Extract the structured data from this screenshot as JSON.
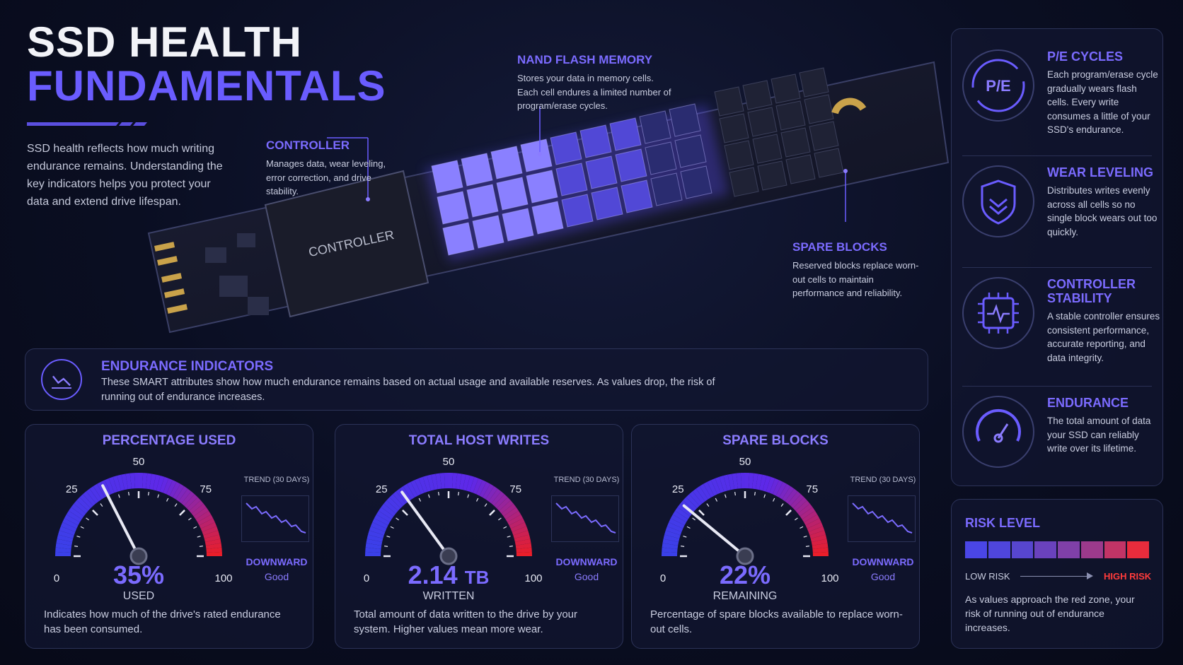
{
  "title": {
    "line1": "SSD HEALTH",
    "line2": "FUNDAMENTALS"
  },
  "intro": "SSD health reflects how much writing endurance remains. Understanding the key indicators helps you protect your data and extend drive lifespan.",
  "callouts": {
    "nand": {
      "heading": "NAND FLASH MEMORY",
      "text": "Stores your data in memory cells. Each cell endures a limited number of program/erase cycles."
    },
    "controller": {
      "heading": "CONTROLLER",
      "text": "Manages data, wear leveling, error correction, and drive stability."
    },
    "spare": {
      "heading": "SPARE BLOCKS",
      "text": "Reserved blocks replace worn-out cells to maintain performance and reliability."
    }
  },
  "chip_label": "CONTROLLER",
  "banner": {
    "heading": "ENDURANCE INDICATORS",
    "text": "These SMART attributes show how much endurance remains based on actual usage and available reserves. As values drop, the risk of running out of endurance increases."
  },
  "gauges": [
    {
      "title": "PERCENTAGE USED",
      "value": "35%",
      "unit": "",
      "needle": 35,
      "caption": "USED",
      "trend_label": "TREND (30 DAYS)",
      "trend_dir": "DOWNWARD",
      "trend_status": "Good",
      "desc": "Indicates how much of the drive's rated endurance has been consumed."
    },
    {
      "title": "TOTAL HOST WRITES",
      "value": "2.14",
      "unit": "TB",
      "needle": 30,
      "caption": "WRITTEN",
      "trend_label": "TREND (30 DAYS)",
      "trend_dir": "DOWNWARD",
      "trend_status": "Good",
      "desc": "Total amount of data written to the drive by your system. Higher values mean more wear."
    },
    {
      "title": "SPARE BLOCKS",
      "value": "22%",
      "unit": "",
      "needle": 22,
      "caption": "REMAINING",
      "trend_label": "TREND (30 DAYS)",
      "trend_dir": "DOWNWARD",
      "trend_status": "Good",
      "desc": "Percentage of spare blocks available to replace worn-out cells."
    }
  ],
  "gauge_ticks": [
    "0",
    "25",
    "50",
    "75",
    "100"
  ],
  "features": [
    {
      "heading": "P/E CYCLES",
      "text": "Each program/erase cycle gradually wears flash cells. Every write consumes a little of your SSD's endurance.",
      "icon": "pe-cycles-icon",
      "icon_text": "P/E"
    },
    {
      "heading": "WEAR LEVELING",
      "text": "Distributes writes evenly across all cells so no single block wears out too quickly.",
      "icon": "shield-icon"
    },
    {
      "heading": "CONTROLLER STABILITY",
      "text": "A stable controller ensures consistent performance, accurate reporting, and data integrity.",
      "icon": "chip-pulse-icon"
    },
    {
      "heading": "ENDURANCE",
      "text": "The total amount of data your SSD can reliably write over its lifetime.",
      "icon": "speedometer-icon"
    }
  ],
  "risk": {
    "heading": "RISK LEVEL",
    "low": "LOW RISK",
    "high": "HIGH RISK",
    "text": "As values approach the red zone, your risk of running out of endurance increases.",
    "colors": [
      "#4a46e6",
      "#4f46dc",
      "#5746cf",
      "#6a42bd",
      "#8040a8",
      "#9c3a8c",
      "#c23466",
      "#e82c3c"
    ]
  },
  "colors": {
    "accent": "#6a5cff",
    "danger": "#e02a2a"
  }
}
